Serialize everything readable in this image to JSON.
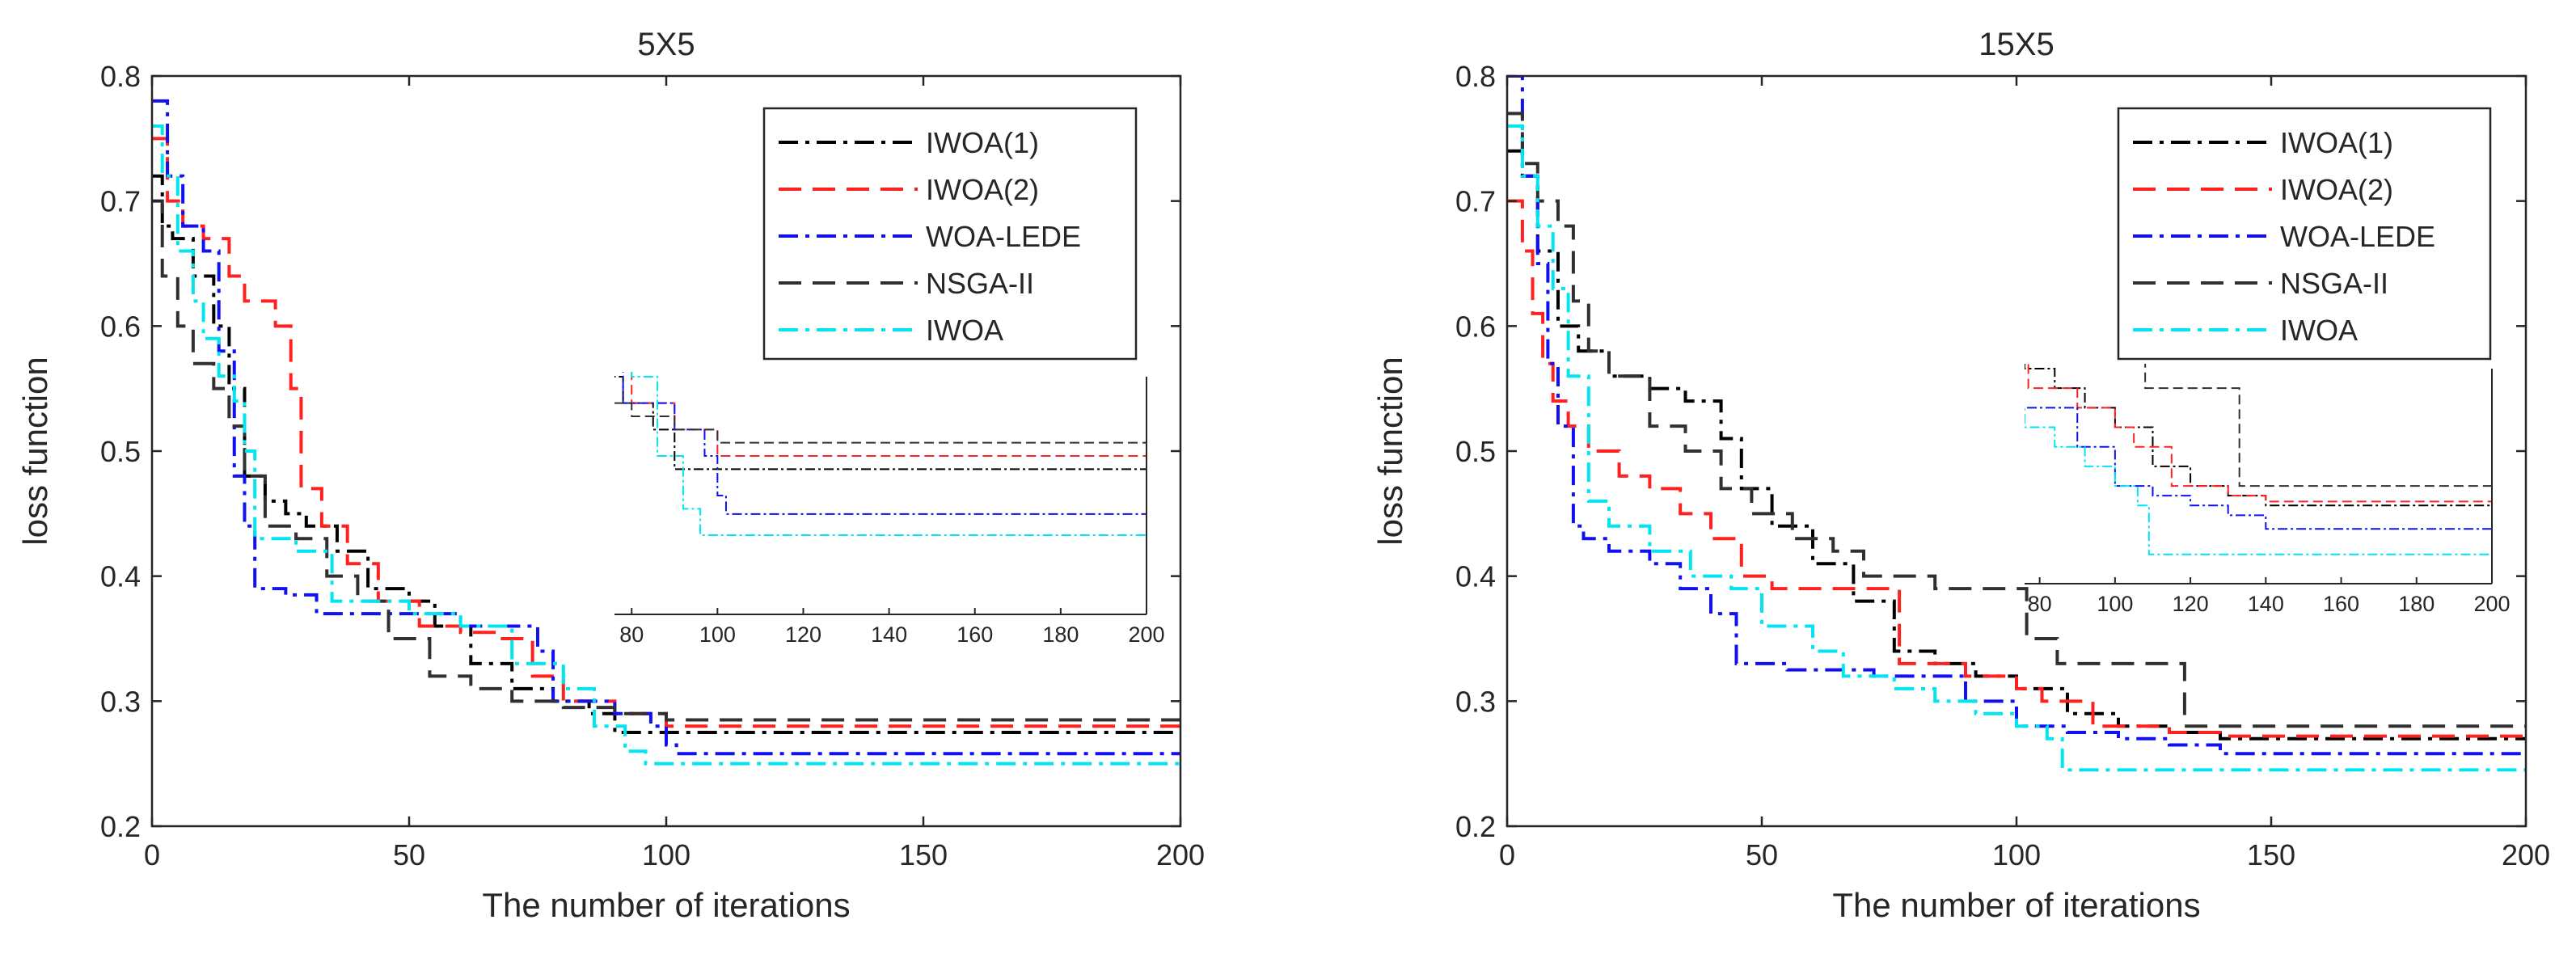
{
  "colors": {
    "IWOA(1)": "#000000",
    "IWOA(2)": "#ff2020",
    "WOA-LEDE": "#1010f0",
    "NSGA-II": "#303030",
    "IWOA": "#00e5f0"
  },
  "chart_data": [
    {
      "type": "line",
      "title": "5X5",
      "xlabel": "The number of iterations",
      "ylabel": "loss function",
      "xlim": [
        0,
        200
      ],
      "ylim": [
        0.2,
        0.8
      ],
      "xticks": [
        "0",
        "50",
        "100",
        "150",
        "200"
      ],
      "yticks": [
        "0.2",
        "0.3",
        "0.4",
        "0.5",
        "0.6",
        "0.7",
        "0.8"
      ],
      "grid": false,
      "legend": "top-right",
      "series": [
        {
          "name": "IWOA(1)",
          "style": "dashdot",
          "color": "#000000",
          "points": [
            [
              0,
              0.72
            ],
            [
              2,
              0.68
            ],
            [
              4,
              0.67
            ],
            [
              8,
              0.64
            ],
            [
              12,
              0.6
            ],
            [
              15,
              0.55
            ],
            [
              18,
              0.48
            ],
            [
              22,
              0.46
            ],
            [
              26,
              0.45
            ],
            [
              30,
              0.44
            ],
            [
              36,
              0.42
            ],
            [
              42,
              0.39
            ],
            [
              50,
              0.38
            ],
            [
              55,
              0.36
            ],
            [
              62,
              0.33
            ],
            [
              70,
              0.31
            ],
            [
              78,
              0.3
            ],
            [
              85,
              0.29
            ],
            [
              90,
              0.275
            ],
            [
              200,
              0.275
            ]
          ]
        },
        {
          "name": "IWOA(2)",
          "style": "dash",
          "color": "#ff2020",
          "points": [
            [
              0,
              0.75
            ],
            [
              3,
              0.7
            ],
            [
              6,
              0.68
            ],
            [
              10,
              0.67
            ],
            [
              15,
              0.64
            ],
            [
              18,
              0.62
            ],
            [
              24,
              0.6
            ],
            [
              27,
              0.55
            ],
            [
              29,
              0.47
            ],
            [
              33,
              0.44
            ],
            [
              38,
              0.41
            ],
            [
              44,
              0.38
            ],
            [
              52,
              0.36
            ],
            [
              60,
              0.355
            ],
            [
              67,
              0.35
            ],
            [
              74,
              0.32
            ],
            [
              80,
              0.3
            ],
            [
              90,
              0.29
            ],
            [
              100,
              0.28
            ],
            [
              200,
              0.28
            ]
          ]
        },
        {
          "name": "WOA-LEDE",
          "style": "dashdot",
          "color": "#1010f0",
          "points": [
            [
              0,
              0.78
            ],
            [
              3,
              0.72
            ],
            [
              6,
              0.68
            ],
            [
              10,
              0.66
            ],
            [
              13,
              0.58
            ],
            [
              16,
              0.48
            ],
            [
              18,
              0.44
            ],
            [
              20,
              0.39
            ],
            [
              26,
              0.385
            ],
            [
              32,
              0.37
            ],
            [
              50,
              0.37
            ],
            [
              60,
              0.36
            ],
            [
              70,
              0.36
            ],
            [
              75,
              0.34
            ],
            [
              78,
              0.3
            ],
            [
              90,
              0.29
            ],
            [
              97,
              0.28
            ],
            [
              100,
              0.265
            ],
            [
              102,
              0.258
            ],
            [
              200,
              0.258
            ]
          ]
        },
        {
          "name": "NSGA-II",
          "style": "dash",
          "color": "#303030",
          "points": [
            [
              0,
              0.7
            ],
            [
              2,
              0.64
            ],
            [
              5,
              0.6
            ],
            [
              8,
              0.57
            ],
            [
              12,
              0.55
            ],
            [
              15,
              0.52
            ],
            [
              18,
              0.48
            ],
            [
              22,
              0.44
            ],
            [
              28,
              0.43
            ],
            [
              34,
              0.4
            ],
            [
              40,
              0.38
            ],
            [
              46,
              0.35
            ],
            [
              54,
              0.32
            ],
            [
              62,
              0.31
            ],
            [
              70,
              0.3
            ],
            [
              80,
              0.295
            ],
            [
              90,
              0.29
            ],
            [
              100,
              0.285
            ],
            [
              200,
              0.285
            ]
          ]
        },
        {
          "name": "IWOA",
          "style": "dashdot",
          "color": "#00e5f0",
          "points": [
            [
              0,
              0.76
            ],
            [
              2,
              0.72
            ],
            [
              5,
              0.66
            ],
            [
              8,
              0.62
            ],
            [
              10,
              0.59
            ],
            [
              13,
              0.56
            ],
            [
              16,
              0.54
            ],
            [
              18,
              0.5
            ],
            [
              20,
              0.43
            ],
            [
              28,
              0.42
            ],
            [
              35,
              0.38
            ],
            [
              50,
              0.37
            ],
            [
              60,
              0.36
            ],
            [
              70,
              0.33
            ],
            [
              80,
              0.31
            ],
            [
              86,
              0.28
            ],
            [
              92,
              0.26
            ],
            [
              96,
              0.25
            ],
            [
              200,
              0.25
            ]
          ]
        }
      ],
      "inset": {
        "xlim": [
          76,
          200
        ],
        "ylim": [
          0.22,
          0.31
        ],
        "xticks": [
          "80",
          "100",
          "120",
          "140",
          "160",
          "180",
          "200"
        ]
      }
    },
    {
      "type": "line",
      "title": "15X5",
      "xlabel": "The number of iterations",
      "ylabel": "loss function",
      "xlim": [
        0,
        200
      ],
      "ylim": [
        0.2,
        0.8
      ],
      "xticks": [
        "0",
        "50",
        "100",
        "150",
        "200"
      ],
      "yticks": [
        "0.2",
        "0.3",
        "0.4",
        "0.5",
        "0.6",
        "0.7",
        "0.8"
      ],
      "grid": false,
      "legend": "top-right",
      "series": [
        {
          "name": "IWOA(1)",
          "style": "dashdot",
          "color": "#000000",
          "points": [
            [
              0,
              0.74
            ],
            [
              3,
              0.72
            ],
            [
              6,
              0.66
            ],
            [
              10,
              0.6
            ],
            [
              14,
              0.58
            ],
            [
              20,
              0.56
            ],
            [
              28,
              0.55
            ],
            [
              35,
              0.54
            ],
            [
              42,
              0.51
            ],
            [
              46,
              0.47
            ],
            [
              52,
              0.44
            ],
            [
              60,
              0.41
            ],
            [
              68,
              0.38
            ],
            [
              76,
              0.34
            ],
            [
              84,
              0.33
            ],
            [
              92,
              0.32
            ],
            [
              100,
              0.31
            ],
            [
              110,
              0.29
            ],
            [
              120,
              0.28
            ],
            [
              130,
              0.275
            ],
            [
              140,
              0.27
            ],
            [
              200,
              0.27
            ]
          ]
        },
        {
          "name": "IWOA(2)",
          "style": "dash",
          "color": "#ff2020",
          "points": [
            [
              0,
              0.7
            ],
            [
              3,
              0.66
            ],
            [
              5,
              0.61
            ],
            [
              7,
              0.57
            ],
            [
              9,
              0.54
            ],
            [
              12,
              0.52
            ],
            [
              16,
              0.5
            ],
            [
              22,
              0.48
            ],
            [
              28,
              0.47
            ],
            [
              34,
              0.45
            ],
            [
              40,
              0.43
            ],
            [
              46,
              0.4
            ],
            [
              52,
              0.39
            ],
            [
              62,
              0.39
            ],
            [
              74,
              0.39
            ],
            [
              77,
              0.33
            ],
            [
              90,
              0.32
            ],
            [
              100,
              0.31
            ],
            [
              105,
              0.3
            ],
            [
              115,
              0.28
            ],
            [
              130,
              0.275
            ],
            [
              140,
              0.272
            ],
            [
              200,
              0.272
            ]
          ]
        },
        {
          "name": "WOA-LEDE",
          "style": "dashdot",
          "color": "#1010f0",
          "points": [
            [
              0,
              0.8
            ],
            [
              3,
              0.72
            ],
            [
              6,
              0.65
            ],
            [
              8,
              0.57
            ],
            [
              10,
              0.52
            ],
            [
              13,
              0.44
            ],
            [
              15,
              0.43
            ],
            [
              20,
              0.42
            ],
            [
              28,
              0.41
            ],
            [
              34,
              0.39
            ],
            [
              40,
              0.37
            ],
            [
              45,
              0.33
            ],
            [
              55,
              0.325
            ],
            [
              63,
              0.325
            ],
            [
              72,
              0.32
            ],
            [
              80,
              0.32
            ],
            [
              90,
              0.3
            ],
            [
              100,
              0.28
            ],
            [
              110,
              0.275
            ],
            [
              120,
              0.27
            ],
            [
              130,
              0.265
            ],
            [
              140,
              0.258
            ],
            [
              200,
              0.258
            ]
          ]
        },
        {
          "name": "NSGA-II",
          "style": "dash",
          "color": "#303030",
          "points": [
            [
              0,
              0.77
            ],
            [
              3,
              0.73
            ],
            [
              6,
              0.7
            ],
            [
              10,
              0.68
            ],
            [
              13,
              0.62
            ],
            [
              16,
              0.58
            ],
            [
              20,
              0.56
            ],
            [
              28,
              0.52
            ],
            [
              35,
              0.5
            ],
            [
              42,
              0.47
            ],
            [
              48,
              0.45
            ],
            [
              56,
              0.43
            ],
            [
              64,
              0.42
            ],
            [
              70,
              0.4
            ],
            [
              84,
              0.39
            ],
            [
              100,
              0.39
            ],
            [
              102,
              0.35
            ],
            [
              108,
              0.33
            ],
            [
              128,
              0.33
            ],
            [
              133,
              0.28
            ],
            [
              200,
              0.28
            ]
          ]
        },
        {
          "name": "IWOA",
          "style": "dashdot",
          "color": "#00e5f0",
          "points": [
            [
              0,
              0.76
            ],
            [
              3,
              0.72
            ],
            [
              6,
              0.68
            ],
            [
              9,
              0.63
            ],
            [
              12,
              0.56
            ],
            [
              16,
              0.46
            ],
            [
              20,
              0.44
            ],
            [
              28,
              0.42
            ],
            [
              36,
              0.4
            ],
            [
              44,
              0.39
            ],
            [
              50,
              0.36
            ],
            [
              60,
              0.34
            ],
            [
              66,
              0.32
            ],
            [
              76,
              0.31
            ],
            [
              84,
              0.3
            ],
            [
              92,
              0.29
            ],
            [
              100,
              0.28
            ],
            [
              106,
              0.27
            ],
            [
              109,
              0.245
            ],
            [
              200,
              0.245
            ]
          ]
        }
      ],
      "inset": {
        "xlim": [
          76,
          200
        ],
        "ylim": [
          0.23,
          0.34
        ],
        "xticks": [
          "80",
          "100",
          "120",
          "140",
          "160",
          "180",
          "200"
        ]
      }
    }
  ]
}
